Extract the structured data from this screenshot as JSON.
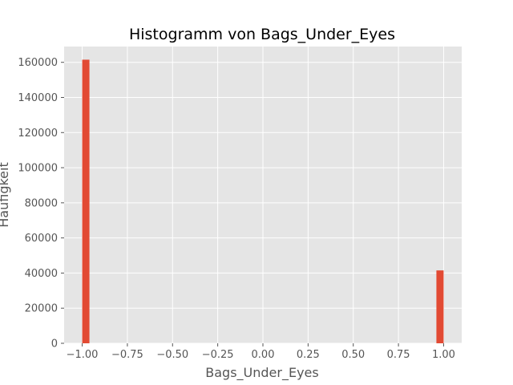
{
  "chart_data": {
    "type": "bar",
    "title": "Histogramm von Bags_Under_Eyes",
    "xlabel": "Bags_Under_Eyes",
    "ylabel": "Häufigkeit",
    "xlim": [
      -1.1,
      1.1
    ],
    "ylim": [
      0,
      169000
    ],
    "xticks": [
      -1.0,
      -0.75,
      -0.5,
      -0.25,
      0.0,
      0.25,
      0.5,
      0.75,
      1.0
    ],
    "xtick_labels": [
      "−1.00",
      "−0.75",
      "−0.50",
      "−0.25",
      "0.00",
      "0.25",
      "0.50",
      "0.75",
      "1.00"
    ],
    "yticks": [
      0,
      20000,
      40000,
      60000,
      80000,
      100000,
      120000,
      140000,
      160000
    ],
    "ytick_labels": [
      "0",
      "20000",
      "40000",
      "60000",
      "80000",
      "100000",
      "120000",
      "140000",
      "160000"
    ],
    "grid": true,
    "bins": [
      {
        "x0": -1.0,
        "x1": -0.96,
        "value": 161500
      },
      {
        "x0": 0.96,
        "x1": 1.0,
        "value": 41500
      }
    ],
    "colors": {
      "bar": "#e24a33",
      "background": "#e5e5e5",
      "grid": "#ffffff"
    }
  }
}
